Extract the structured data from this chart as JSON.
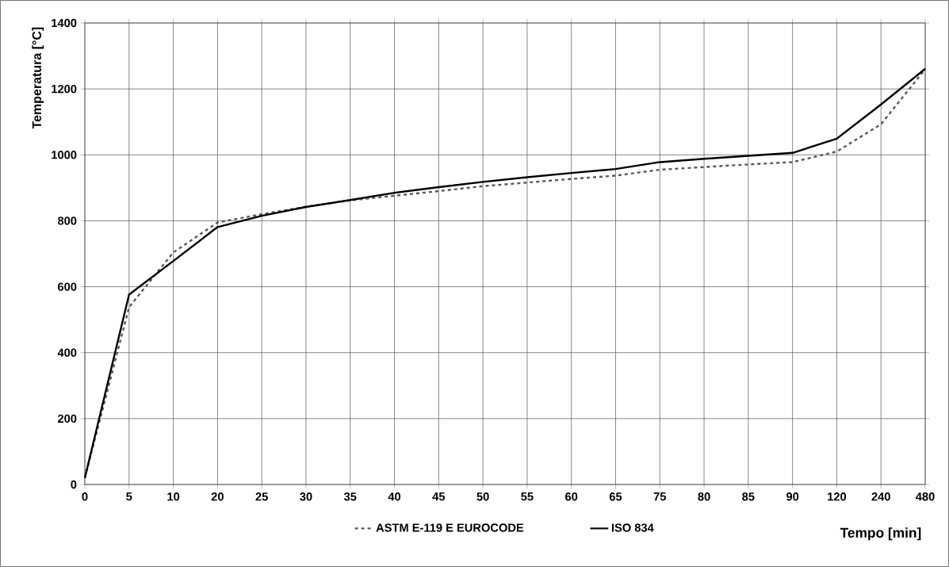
{
  "chart_data": {
    "type": "line",
    "xlabel": "Tempo [min]",
    "ylabel": "Temperatura [°C]",
    "categories": [
      "0",
      "5",
      "10",
      "20",
      "25",
      "30",
      "35",
      "40",
      "45",
      "50",
      "55",
      "60",
      "65",
      "75",
      "80",
      "85",
      "90",
      "120",
      "240",
      "480"
    ],
    "series": [
      {
        "name": "ASTM E-119 E EUROCODE",
        "color": "#595959",
        "line_style": "dashed",
        "values": [
          20,
          538,
          704,
          795,
          820,
          843,
          862,
          876,
          890,
          905,
          916,
          927,
          937,
          955,
          963,
          971,
          978,
          1010,
          1093,
          1260
        ]
      },
      {
        "name": "ISO 834",
        "color": "#000000",
        "line_style": "solid",
        "values": [
          20,
          576,
          678,
          781,
          815,
          842,
          863,
          885,
          902,
          918,
          932,
          945,
          957,
          978,
          988,
          997,
          1006,
          1049,
          1153,
          1261
        ]
      }
    ],
    "ylim": [
      0,
      1400
    ],
    "yticks": [
      0,
      200,
      400,
      600,
      800,
      1000,
      1200,
      1400
    ],
    "grid": true,
    "legend": "bottom",
    "marker": "none"
  }
}
